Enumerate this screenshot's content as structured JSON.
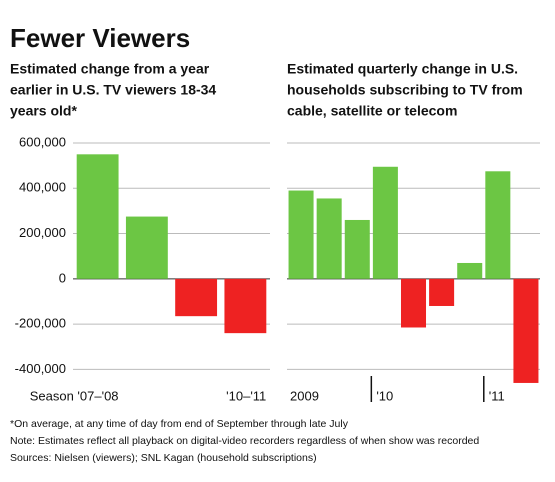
{
  "title": "Fewer Viewers",
  "chart_data": [
    {
      "type": "bar",
      "subtitle": [
        "Estimated change from a year",
        "earlier in U.S. TV viewers 18-34",
        "years old*"
      ],
      "categories": [
        "Season '07–'08",
        null,
        null,
        "'10–'11"
      ],
      "values": [
        550000,
        275000,
        -165000,
        -240000
      ],
      "colors": {
        "positive": "#6cc644",
        "negative": "#ee2222"
      },
      "ylim": [
        -500000,
        600000
      ],
      "yticks": [
        {
          "value": 600000,
          "label": "600,000"
        },
        {
          "value": 400000,
          "label": "400,000"
        },
        {
          "value": 200000,
          "label": "200,000"
        },
        0,
        {
          "value": -200000,
          "label": "-200,000"
        },
        {
          "value": -400000,
          "label": "-400,000"
        }
      ],
      "grid": true
    },
    {
      "type": "bar",
      "subtitle": [
        "Estimated quarterly change in U.S.",
        "households subscribing to TV from",
        "cable, satellite or telecom"
      ],
      "categories": [
        "2009",
        null,
        null,
        "'10",
        null,
        null,
        null,
        "'11",
        null
      ],
      "values": [
        390000,
        355000,
        260000,
        495000,
        -215000,
        -120000,
        70000,
        475000,
        -460000
      ],
      "colors": {
        "positive": "#6cc644",
        "negative": "#ee2222"
      },
      "ylim": [
        -500000,
        600000
      ],
      "yticks": [
        600000,
        400000,
        200000,
        0,
        -200000,
        -400000
      ],
      "grid": true
    }
  ],
  "notes": [
    "*On average, at any time of day from end of September through late July",
    "Note: Estimates reflect all playback on digital-video recorders regardless of when show was recorded",
    "Sources: Nielsen (viewers); SNL Kagan (household subscriptions)"
  ]
}
